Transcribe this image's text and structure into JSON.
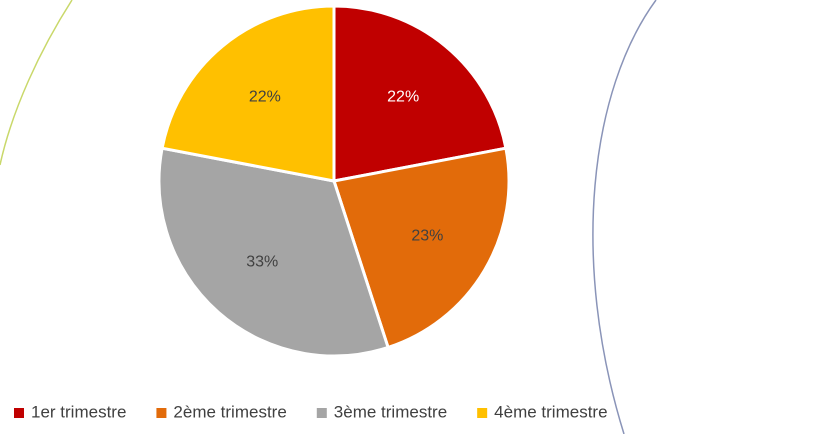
{
  "chart_data": {
    "type": "pie",
    "categories": [
      "1er trimestre",
      "2ème trimestre",
      "3ème trimestre",
      "4ème trimestre"
    ],
    "values": [
      22,
      23,
      33,
      22
    ],
    "value_labels": [
      "22%",
      "23%",
      "33%",
      "22%"
    ],
    "colors": [
      "#c00000",
      "#e26b0a",
      "#a5a5a5",
      "#ffc000"
    ],
    "legend": "bottom"
  }
}
